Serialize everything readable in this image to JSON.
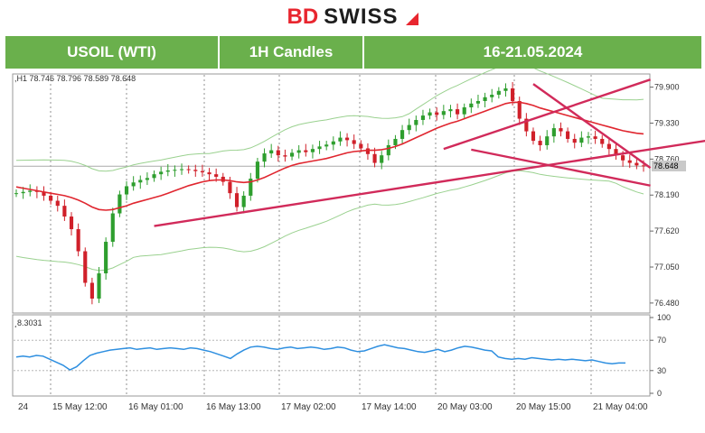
{
  "brand": {
    "prefix": "BD",
    "name": "SWISS"
  },
  "header": {
    "instrument": "USOIL (WTI)",
    "timeframe": "1H Candles",
    "period": "16-21.05.2024"
  },
  "ohlc_line": ",H1  78.746 78.796 78.589 78.648",
  "rsi_label": "¸8.3031",
  "chart_data": [
    {
      "type": "candlestick",
      "title": "USOIL (WTI) 1H Candles",
      "current_price": "78.648",
      "y_ticks": [
        "79.900",
        "79.330",
        "78.760",
        "78.190",
        "77.620",
        "77.050",
        "76.480"
      ],
      "x_ticks": [
        "24",
        "15 May 12:00",
        "16 May 01:00",
        "16 May 13:00",
        "17 May 02:00",
        "17 May 14:00",
        "20 May 03:00",
        "20 May 15:00",
        "21 May 04:00"
      ],
      "ylim": [
        76.35,
        80.08
      ],
      "close_series": [
        78.22,
        78.24,
        78.26,
        78.24,
        78.18,
        78.1,
        78.02,
        77.85,
        77.65,
        77.3,
        76.8,
        76.55,
        76.95,
        77.45,
        77.9,
        78.2,
        78.33,
        78.39,
        78.43,
        78.46,
        78.52,
        78.56,
        78.58,
        78.59,
        78.6,
        78.59,
        78.57,
        78.55,
        78.52,
        78.48,
        78.4,
        78.22,
        78.0,
        78.18,
        78.45,
        78.72,
        78.85,
        78.9,
        78.82,
        78.8,
        78.86,
        78.9,
        78.87,
        78.92,
        78.96,
        78.99,
        79.04,
        79.1,
        79.06,
        79.0,
        78.93,
        78.84,
        78.7,
        78.82,
        78.98,
        79.08,
        79.22,
        79.3,
        79.38,
        79.45,
        79.5,
        79.46,
        79.52,
        79.55,
        79.47,
        79.58,
        79.64,
        79.68,
        79.74,
        79.78,
        79.84,
        79.88,
        79.68,
        79.4,
        79.2,
        79.05,
        78.98,
        79.12,
        79.25,
        79.2,
        79.08,
        79.02,
        79.1,
        79.12,
        79.08,
        79.0,
        78.92,
        78.82,
        78.74,
        78.7,
        78.66,
        78.65
      ],
      "ma_series": [
        78.32,
        78.3,
        78.28,
        78.26,
        78.24,
        78.22,
        78.2,
        78.18,
        78.15,
        78.11,
        78.06,
        78.0,
        77.96,
        77.95,
        77.96,
        77.99,
        78.02,
        78.06,
        78.09,
        78.12,
        78.15,
        78.18,
        78.22,
        78.26,
        78.3,
        78.34,
        78.37,
        78.4,
        78.42,
        78.43,
        78.43,
        78.42,
        78.4,
        78.39,
        78.4,
        78.43,
        78.47,
        78.52,
        78.57,
        78.62,
        78.66,
        78.69,
        78.71,
        78.73,
        78.75,
        78.77,
        78.8,
        78.83,
        78.86,
        78.88,
        78.89,
        78.9,
        78.9,
        78.91,
        78.93,
        78.96,
        79.0,
        79.05,
        79.1,
        79.15,
        79.2,
        79.25,
        79.29,
        79.33,
        79.36,
        79.4,
        79.44,
        79.48,
        79.52,
        79.56,
        79.6,
        79.64,
        79.66,
        79.66,
        79.64,
        79.61,
        79.57,
        79.54,
        79.51,
        79.48,
        79.45,
        79.42,
        79.39,
        79.36,
        79.33,
        79.3,
        79.27,
        79.24,
        79.21,
        79.19,
        79.17,
        79.16
      ],
      "trendlines": [
        {
          "x": [
            20,
            100
          ],
          "y": [
            77.7,
            79.05
          ]
        },
        {
          "x": [
            62,
            92
          ],
          "y": [
            78.92,
            80.02
          ]
        },
        {
          "x": [
            75,
            92
          ],
          "y": [
            79.95,
            78.62
          ]
        },
        {
          "x": [
            66,
            92
          ],
          "y": [
            78.91,
            78.34
          ]
        }
      ],
      "indicator": {
        "name": "RSI",
        "y_ticks": [
          "100",
          "70",
          "30",
          "0"
        ],
        "ylim": [
          0,
          100
        ],
        "series": [
          48,
          49,
          48,
          50,
          49,
          45,
          41,
          37,
          31,
          35,
          43,
          50,
          53,
          55,
          57,
          58,
          59,
          60,
          58,
          59,
          60,
          58,
          59,
          60,
          59,
          58,
          60,
          59,
          57,
          55,
          52,
          49,
          46,
          52,
          57,
          61,
          62,
          61,
          59,
          58,
          60,
          61,
          59,
          60,
          61,
          60,
          58,
          59,
          61,
          60,
          57,
          55,
          56,
          59,
          62,
          64,
          62,
          60,
          59,
          57,
          55,
          54,
          56,
          58,
          55,
          57,
          60,
          62,
          61,
          59,
          57,
          56,
          48,
          46,
          45,
          46,
          45,
          47,
          46,
          45,
          44,
          45,
          44,
          45,
          44,
          43,
          44,
          42,
          40,
          39,
          40,
          40
        ]
      }
    }
  ]
}
